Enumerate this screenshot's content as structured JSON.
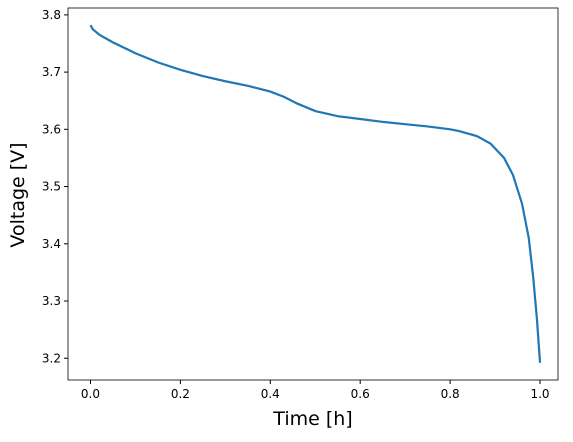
{
  "chart_data": {
    "type": "line",
    "x_label": "Time [h]",
    "y_label": "Voltage [V]",
    "x": [
      0,
      0.005,
      0.02,
      0.05,
      0.1,
      0.15,
      0.2,
      0.25,
      0.3,
      0.35,
      0.4,
      0.43,
      0.46,
      0.5,
      0.55,
      0.6,
      0.65,
      0.7,
      0.75,
      0.8,
      0.82,
      0.86,
      0.89,
      0.92,
      0.94,
      0.96,
      0.975,
      0.985,
      0.993,
      1.0
    ],
    "series": [
      {
        "color": "#1f77b4",
        "values": [
          3.782,
          3.775,
          3.765,
          3.752,
          3.733,
          3.717,
          3.704,
          3.693,
          3.684,
          3.676,
          3.666,
          3.657,
          3.645,
          3.632,
          3.623,
          3.618,
          3.613,
          3.609,
          3.605,
          3.6,
          3.597,
          3.588,
          3.575,
          3.55,
          3.52,
          3.47,
          3.41,
          3.34,
          3.27,
          3.192
        ]
      }
    ],
    "xlim": [
      -0.05,
      1.04
    ],
    "ylim": [
      3.162,
      3.812
    ],
    "xticks": [
      {
        "value": 0,
        "label": "0.0"
      },
      0.2,
      0.4,
      0.6,
      0.8,
      {
        "value": 1,
        "label": "1.0"
      }
    ],
    "yticks": [
      3.2,
      3.3,
      3.4,
      3.5,
      3.6,
      3.7,
      3.8
    ]
  }
}
